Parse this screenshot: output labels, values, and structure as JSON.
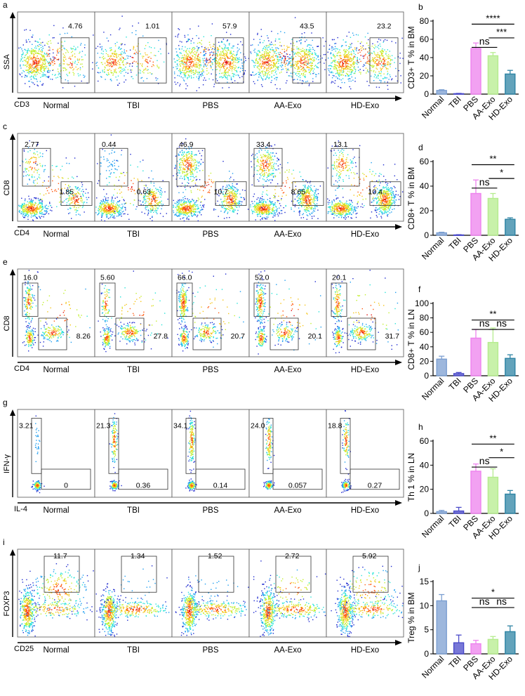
{
  "groups": [
    "Normal",
    "TBI",
    "PBS",
    "AA-Exo",
    "HD-Exo"
  ],
  "colors": {
    "Normal": "#7c9fd1",
    "TBI": "#4b4bc9",
    "PBS": "#ee82ee",
    "AA-Exo": "#b5ec8e",
    "HD-Exo": "#2f84a4",
    "density": [
      "#1f2bcf",
      "#1e9df0",
      "#27e3d8",
      "#c2ef2e",
      "#f6c519",
      "#ff5b12",
      "#e01010"
    ]
  },
  "rows": [
    {
      "id": "a",
      "flow_label": "a",
      "x_axis": "CD3",
      "y_axis": "SSA",
      "pattern": "cd3",
      "panels": [
        {
          "group": "Normal",
          "q1": "4.76"
        },
        {
          "group": "TBI",
          "q1": "1.01"
        },
        {
          "group": "PBS",
          "q1": "57.9"
        },
        {
          "group": "AA-Exo",
          "q1": "43.5"
        },
        {
          "group": "HD-Exo",
          "q1": "23.2"
        }
      ],
      "chart": {
        "panel_label": "b",
        "type": "bar",
        "ylabel": "CD3+ T % in BM",
        "ylim": [
          0,
          80
        ],
        "yticks": [
          0,
          20,
          40,
          60,
          80
        ],
        "categories": [
          "Normal",
          "TBI",
          "PBS",
          "AA-Exo",
          "HD-Exo"
        ],
        "values": [
          4,
          0.5,
          50,
          42,
          22
        ],
        "errors": [
          0.8,
          0.3,
          6,
          3.5,
          4
        ],
        "significance": [
          {
            "from": "PBS",
            "to": "HD-Exo",
            "label": "****",
            "level": 3
          },
          {
            "from": "PBS",
            "to": "AA-Exo",
            "label": "ns",
            "level": 1
          },
          {
            "from": "AA-Exo",
            "to": "HD-Exo",
            "label": "***",
            "level": 2
          }
        ]
      }
    },
    {
      "id": "c",
      "flow_label": "c",
      "x_axis": "CD4",
      "y_axis": "CD8",
      "pattern": "cd4cd8bm",
      "panels": [
        {
          "group": "Normal",
          "q1": "2.77",
          "q2": "1.85"
        },
        {
          "group": "TBI",
          "q1": "0.44",
          "q2": "0.63"
        },
        {
          "group": "PBS",
          "q1": "46.9",
          "q2": "10.7"
        },
        {
          "group": "AA-Exo",
          "q1": "33.4",
          "q2": "8.65"
        },
        {
          "group": "HD-Exo",
          "q1": "13.1",
          "q2": "10.4"
        }
      ],
      "chart": {
        "panel_label": "d",
        "type": "bar",
        "ylabel": "CD8+ T % in BM",
        "ylim": [
          0,
          60
        ],
        "yticks": [
          0,
          20,
          40,
          60
        ],
        "categories": [
          "Normal",
          "TBI",
          "PBS",
          "AA-Exo",
          "HD-Exo"
        ],
        "values": [
          2,
          0.3,
          34,
          30,
          13
        ],
        "errors": [
          0.5,
          0.2,
          11,
          4,
          1.2
        ],
        "significance": [
          {
            "from": "PBS",
            "to": "HD-Exo",
            "label": "**",
            "level": 3
          },
          {
            "from": "PBS",
            "to": "AA-Exo",
            "label": "ns",
            "level": 1
          },
          {
            "from": "AA-Exo",
            "to": "HD-Exo",
            "label": "*",
            "level": 2
          }
        ]
      }
    },
    {
      "id": "e",
      "flow_label": "e",
      "x_axis": "CD4",
      "y_axis": "CD8",
      "pattern": "cd4cd8ln",
      "panels": [
        {
          "group": "Normal",
          "q1": "16.0",
          "q2": "8.26"
        },
        {
          "group": "TBI",
          "q1": "5.60",
          "q2": "27.8"
        },
        {
          "group": "PBS",
          "q1": "66.0",
          "q2": "20.7"
        },
        {
          "group": "AA-Exo",
          "q1": "52.0",
          "q2": "20.1"
        },
        {
          "group": "HD-Exo",
          "q1": "20.1",
          "q2": "31.7"
        }
      ],
      "chart": {
        "panel_label": "f",
        "type": "bar",
        "ylabel": "CD8+ T % in LN",
        "ylim": [
          0,
          100
        ],
        "yticks": [
          0,
          20,
          40,
          60,
          80,
          100
        ],
        "categories": [
          "Normal",
          "TBI",
          "PBS",
          "AA-Exo",
          "HD-Exo"
        ],
        "values": [
          23,
          3,
          52,
          46,
          24
        ],
        "errors": [
          4,
          1.5,
          12,
          20,
          5
        ],
        "significance": [
          {
            "from": "PBS",
            "to": "HD-Exo",
            "label": "**",
            "level": 2
          },
          {
            "from": "PBS",
            "to": "AA-Exo",
            "label": "ns",
            "level": 1
          },
          {
            "from": "AA-Exo",
            "to": "HD-Exo",
            "label": "ns",
            "level": 1
          }
        ]
      }
    },
    {
      "id": "g",
      "flow_label": "g",
      "x_axis": "IL-4",
      "y_axis": "IFN-γ",
      "pattern": "th1",
      "panels": [
        {
          "group": "Normal",
          "q1": "3.21",
          "q2": "0"
        },
        {
          "group": "TBI",
          "q1": "21.3",
          "q2": "0.36"
        },
        {
          "group": "PBS",
          "q1": "34.1",
          "q2": "0.14"
        },
        {
          "group": "AA-Exo",
          "q1": "24.0",
          "q2": "0.057"
        },
        {
          "group": "HD-Exo",
          "q1": "18.8",
          "q2": "0.27"
        }
      ],
      "chart": {
        "panel_label": "h",
        "type": "bar",
        "ylabel": "Th 1 % in LN",
        "ylim": [
          0,
          60
        ],
        "yticks": [
          0,
          20,
          40,
          60
        ],
        "categories": [
          "Normal",
          "TBI",
          "PBS",
          "AA-Exo",
          "HD-Exo"
        ],
        "values": [
          1.5,
          2,
          35,
          30,
          16
        ],
        "errors": [
          1,
          3,
          6,
          7,
          3
        ],
        "significance": [
          {
            "from": "PBS",
            "to": "HD-Exo",
            "label": "**",
            "level": 3
          },
          {
            "from": "PBS",
            "to": "AA-Exo",
            "label": "ns",
            "level": 1
          },
          {
            "from": "AA-Exo",
            "to": "HD-Exo",
            "label": "*",
            "level": 2
          }
        ]
      }
    },
    {
      "id": "i",
      "flow_label": "i",
      "x_axis": "CD25",
      "y_axis": "FOXP3",
      "pattern": "treg",
      "panels": [
        {
          "group": "Normal",
          "q1": "11.7"
        },
        {
          "group": "TBI",
          "q1": "1.34"
        },
        {
          "group": "PBS",
          "q1": "1.52"
        },
        {
          "group": "AA-Exo",
          "q1": "2.72"
        },
        {
          "group": "HD-Exo",
          "q1": "5.92"
        }
      ],
      "chart": {
        "panel_label": "j",
        "type": "bar",
        "ylabel": "Treg % in BM",
        "ylim": [
          0,
          15
        ],
        "yticks": [
          0,
          5,
          10,
          15
        ],
        "categories": [
          "Normal",
          "TBI",
          "PBS",
          "AA-Exo",
          "HD-Exo"
        ],
        "values": [
          11,
          2.3,
          2.1,
          3,
          4.6
        ],
        "errors": [
          1.3,
          1.6,
          0.7,
          0.6,
          1.2
        ],
        "significance": [
          {
            "from": "PBS",
            "to": "HD-Exo",
            "label": "*",
            "level": 2
          },
          {
            "from": "PBS",
            "to": "AA-Exo",
            "label": "ns",
            "level": 1
          },
          {
            "from": "AA-Exo",
            "to": "HD-Exo",
            "label": "ns",
            "level": 1
          }
        ]
      }
    }
  ]
}
